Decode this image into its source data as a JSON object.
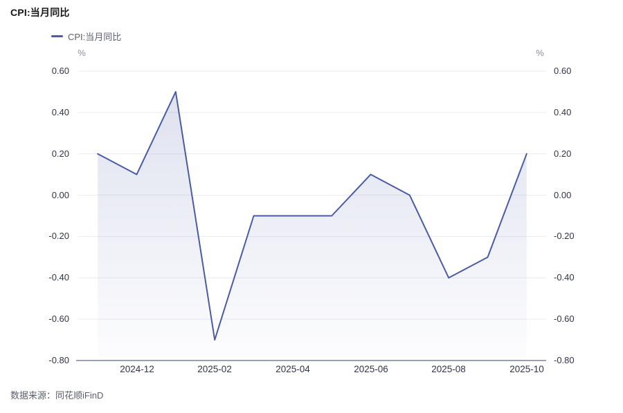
{
  "header": {
    "title": "CPI:当月同比"
  },
  "legend": {
    "items": [
      {
        "label": "CPI:当月同比",
        "color": "#4a5aa5"
      }
    ]
  },
  "footer": {
    "source": "数据来源：同花顺iFinD"
  },
  "chart_data": {
    "type": "area",
    "title": "CPI:当月同比",
    "unit_left": "%",
    "unit_right": "%",
    "categories": [
      "2024-11",
      "2024-12",
      "2025-01",
      "2025-02",
      "2025-03",
      "2025-04",
      "2025-05",
      "2025-06",
      "2025-07",
      "2025-08",
      "2025-09",
      "2025-10"
    ],
    "series": [
      {
        "name": "CPI:当月同比",
        "values": [
          0.2,
          0.1,
          0.5,
          -0.7,
          -0.1,
          -0.1,
          -0.1,
          0.1,
          0.0,
          -0.4,
          -0.3,
          0.2
        ]
      }
    ],
    "x_tick_labels": [
      "2024-12",
      "2025-02",
      "2025-04",
      "2025-06",
      "2025-08",
      "2025-10"
    ],
    "x_tick_indices": [
      1,
      3,
      5,
      7,
      9,
      11
    ],
    "y_ticks": [
      0.6,
      0.4,
      0.2,
      0.0,
      -0.2,
      -0.4,
      -0.6,
      -0.8
    ],
    "ylim": [
      -0.8,
      0.6
    ],
    "grid": true,
    "legend_position": "top-left",
    "colors": {
      "line": "#4a5aa5",
      "area_top": "rgba(74,90,165,0.18)",
      "area_bottom": "rgba(74,90,165,0.01)",
      "gridline": "#e9ebf5",
      "axis_line": "#9ba1b5",
      "tick_label": "#2f3448",
      "unit_label": "#8a8f9f"
    }
  }
}
